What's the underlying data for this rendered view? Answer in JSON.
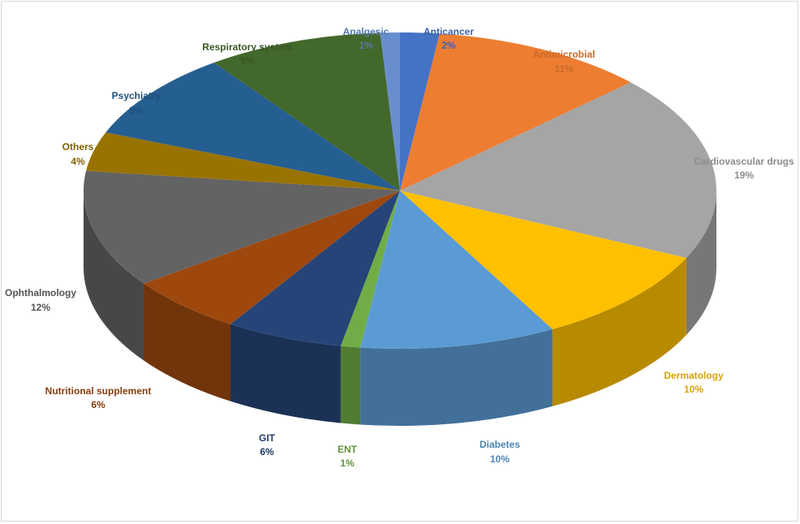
{
  "chart_data": {
    "type": "pie",
    "categories": [
      "Anticancer",
      "Antimicrobial",
      "Cardiovascular drugs",
      "Dermatology",
      "Diabetes",
      "ENT",
      "GIT",
      "Nutritional supplement",
      "Ophthalmology",
      "Others",
      "Psychiatry",
      "Respiratory system",
      "Analgesic"
    ],
    "values": [
      2,
      11,
      19,
      10,
      10,
      1,
      6,
      6,
      12,
      4,
      9,
      9,
      1
    ],
    "value_labels": [
      "2%",
      "11%",
      "19%",
      "10%",
      "10%",
      "1%",
      "6%",
      "6%",
      "12%",
      "4%",
      "9%",
      "9%",
      "1%"
    ],
    "colors": [
      "#4472c4",
      "#ed7d31",
      "#a5a5a5",
      "#ffc000",
      "#5b9bd5",
      "#70ad47",
      "#264478",
      "#9e480e",
      "#636363",
      "#997300",
      "#255e91",
      "#43682b",
      "#698ed0"
    ]
  }
}
